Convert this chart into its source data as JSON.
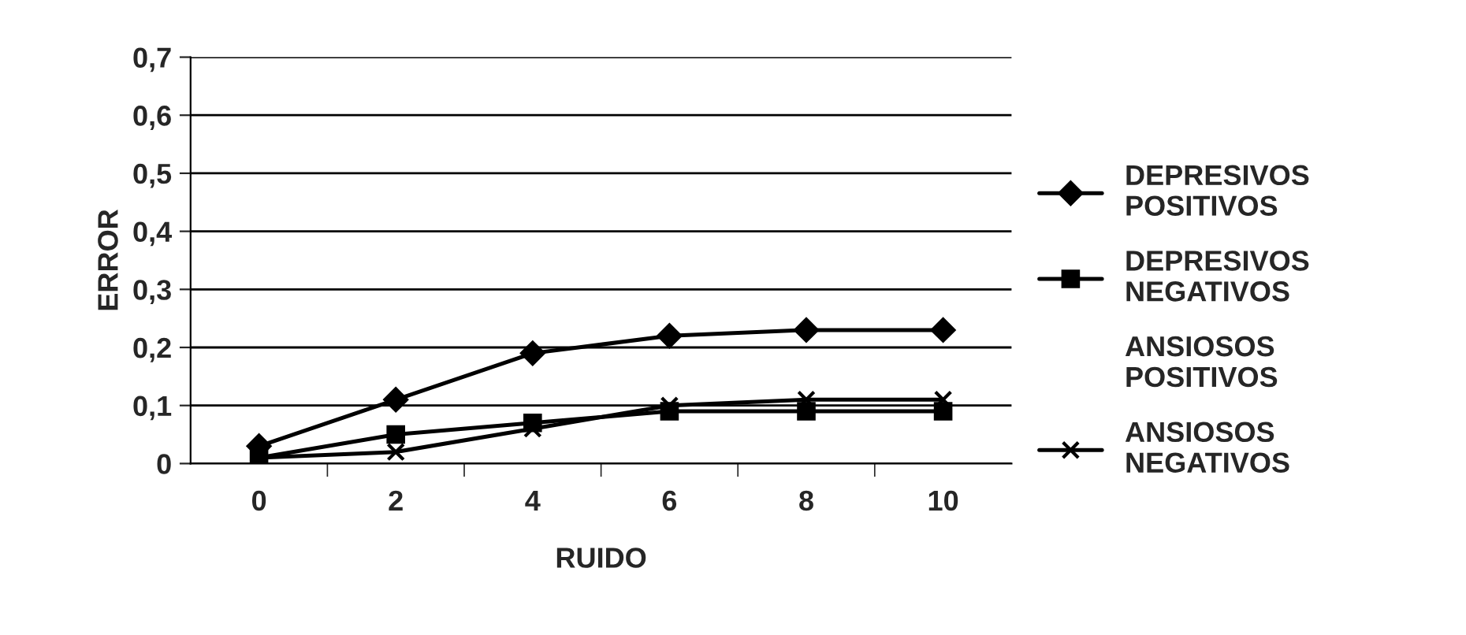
{
  "chart_data": {
    "type": "line",
    "xlabel": "RUIDO",
    "ylabel": "ERROR",
    "categories": [
      "0",
      "2",
      "4",
      "6",
      "8",
      "10"
    ],
    "ylim": [
      0,
      0.7
    ],
    "yticks": [
      {
        "value": 0,
        "label": "0"
      },
      {
        "value": 0.1,
        "label": "0,1"
      },
      {
        "value": 0.2,
        "label": "0,2"
      },
      {
        "value": 0.3,
        "label": "0,3"
      },
      {
        "value": 0.4,
        "label": "0,4"
      },
      {
        "value": 0.5,
        "label": "0,5"
      },
      {
        "value": 0.6,
        "label": "0,6"
      },
      {
        "value": 0.7,
        "label": "0,7"
      }
    ],
    "grid": "y",
    "legend": "right",
    "series": [
      {
        "name": "DEPRESIVOS POSITIVOS",
        "color": "#000000",
        "marker": "diamond",
        "values": [
          0.03,
          0.11,
          0.19,
          0.22,
          0.23,
          0.23
        ]
      },
      {
        "name": "DEPRESIVOS NEGATIVOS",
        "color": "#000000",
        "marker": "square",
        "values": [
          0.01,
          0.05,
          0.07,
          0.09,
          0.09,
          0.09
        ]
      },
      {
        "name": "ANSIOSOS POSITIVOS",
        "marker": "none",
        "values": [
          null,
          null,
          null,
          null,
          null,
          null
        ]
      },
      {
        "name": "ANSIOSOS NEGATIVOS",
        "color": "#000000",
        "marker": "cross",
        "values": [
          0.01,
          0.02,
          0.06,
          0.1,
          0.11,
          0.11
        ]
      }
    ]
  }
}
